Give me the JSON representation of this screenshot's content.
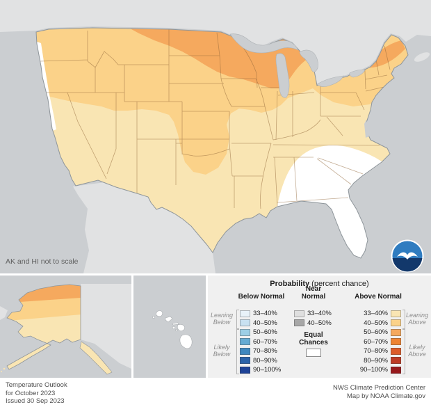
{
  "map": {
    "note": "AK and HI not to scale"
  },
  "colors": {
    "ocean": "#CBCED1",
    "land": "#E1E2E3",
    "equal_chances": "#FFFFFF",
    "state_border": "rgba(146,104,58,0.55)",
    "us_outline": "#8E959A",
    "above": {
      "p33": "#F9E5B3",
      "p40": "#FBD289",
      "p50": "#F5A95E",
      "p60": "#EE8434",
      "p70": "#DC5C2A",
      "p80": "#BD3B26",
      "p90": "#97191C"
    },
    "below": {
      "p33": "#E8F2F9",
      "p40": "#C8E1F1",
      "p50": "#9DCFE6",
      "p60": "#66ABD3",
      "p70": "#3F88BF",
      "p80": "#2B63A9",
      "p90": "#1E4397"
    },
    "near": {
      "p33": "#DFDFDF",
      "p40": "#A7A7A7"
    }
  },
  "map_regions": [
    {
      "label": "Above Normal 50–60%",
      "area": "Northern Plains, Upper Midwest, northern New England, northern Alaska",
      "color_ref": "above.p50"
    },
    {
      "label": "Above Normal 40–50%",
      "area": "Pacific Northwest, northern Rockies, Central Plains, Great Lakes, Northeast",
      "color_ref": "above.p40"
    },
    {
      "label": "Above Normal 33–40%",
      "area": "Much of the West, South, Ohio Valley and Mid-Atlantic",
      "color_ref": "above.p33"
    },
    {
      "label": "Equal Chances",
      "area": "Southeast (FL, GA, AL, SC) and Pacific coastal strip, Hawaii",
      "color_ref": "equal_chances"
    }
  ],
  "legend": {
    "title_bold": "Probability",
    "title_rest": " (percent chance)",
    "below": {
      "header": "Below Normal",
      "rows": [
        {
          "label": "33–40%",
          "color": "p33"
        },
        {
          "label": "40–50%",
          "color": "p40"
        },
        {
          "label": "50–60%",
          "color": "p50"
        },
        {
          "label": "60–70%",
          "color": "p60"
        },
        {
          "label": "70–80%",
          "color": "p70"
        },
        {
          "label": "80–90%",
          "color": "p80"
        },
        {
          "label": "90–100%",
          "color": "p90"
        }
      ]
    },
    "near": {
      "header_line1": "Near",
      "header_line2": "Normal",
      "rows": [
        {
          "label": "33–40%",
          "color": "p33"
        },
        {
          "label": "40–50%",
          "color": "p40"
        }
      ]
    },
    "above": {
      "header": "Above Normal",
      "rows": [
        {
          "label": "33–40%",
          "color": "p33"
        },
        {
          "label": "40–50%",
          "color": "p40"
        },
        {
          "label": "50–60%",
          "color": "p50"
        },
        {
          "label": "60–70%",
          "color": "p60"
        },
        {
          "label": "70–80%",
          "color": "p70"
        },
        {
          "label": "80–90%",
          "color": "p80"
        },
        {
          "label": "90–100%",
          "color": "p90"
        }
      ]
    },
    "equal": {
      "line1": "Equal",
      "line2": "Chances"
    },
    "side": {
      "leaning_below": "Leaning Below",
      "likely_below": "Likely Below",
      "leaning_above": "Leaning Above",
      "likely_above": "Likely Above"
    }
  },
  "footer": {
    "left_lines": [
      "Temperature Outlook",
      "for October 2023",
      "Issued 30 Sep 2023"
    ],
    "right_lines": [
      "NWS Climate Prediction Center",
      "Map by NOAA Climate.gov"
    ]
  }
}
